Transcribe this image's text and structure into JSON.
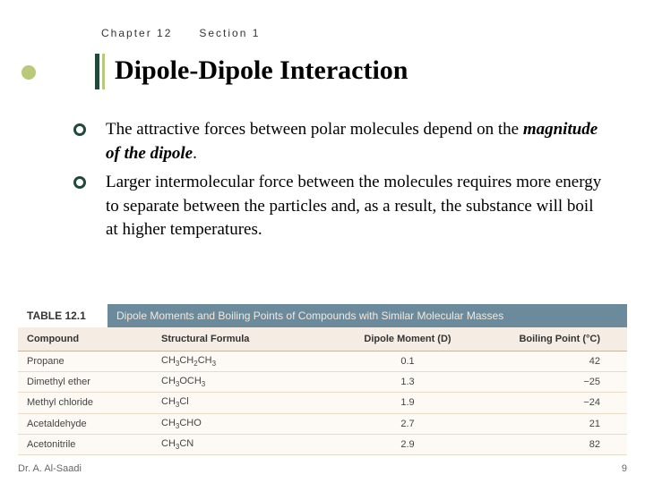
{
  "header": {
    "chapter": "Chapter 12",
    "section": "Section 1"
  },
  "title": "Dipole-Dipole Interaction",
  "bullets": [
    {
      "pre": "The attractive forces between polar molecules depend on the ",
      "em": "magnitude of the dipole",
      "post": "."
    },
    {
      "pre": "Larger intermolecular force between the molecules requires more energy to separate between the particles and, as a result, the substance will boil at higher temperatures.",
      "em": "",
      "post": ""
    }
  ],
  "table": {
    "number": "TABLE 12.1",
    "caption": "Dipole Moments and Boiling Points of Compounds with Similar Molecular Masses",
    "columns": [
      "Compound",
      "Structural Formula",
      "Dipole Moment (D)",
      "Boiling Point (°C)"
    ],
    "rows": [
      {
        "compound": "Propane",
        "formula_html": "CH<span class='sub'>3</span>CH<span class='sub'>2</span>CH<span class='sub'>3</span>",
        "dipole": "0.1",
        "bp": "42"
      },
      {
        "compound": "Dimethyl ether",
        "formula_html": "CH<span class='sub'>3</span>OCH<span class='sub'>3</span>",
        "dipole": "1.3",
        "bp": "−25"
      },
      {
        "compound": "Methyl chloride",
        "formula_html": "CH<span class='sub'>3</span>Cl",
        "dipole": "1.9",
        "bp": "−24"
      },
      {
        "compound": "Acetaldehyde",
        "formula_html": "CH<span class='sub'>3</span>CHO",
        "dipole": "2.7",
        "bp": "21"
      },
      {
        "compound": "Acetonitrile",
        "formula_html": "CH<span class='sub'>3</span>CN",
        "dipole": "2.9",
        "bp": "82"
      }
    ]
  },
  "footer": {
    "author": "Dr. A. Al-Saadi",
    "page": "9"
  },
  "colors": {
    "accent_dark": "#214a3a",
    "accent_light": "#b8c97a",
    "table_header_bg": "#6b8a9c",
    "table_row_bg": "#fdfaf5",
    "table_head_bg": "#f5ede3"
  }
}
